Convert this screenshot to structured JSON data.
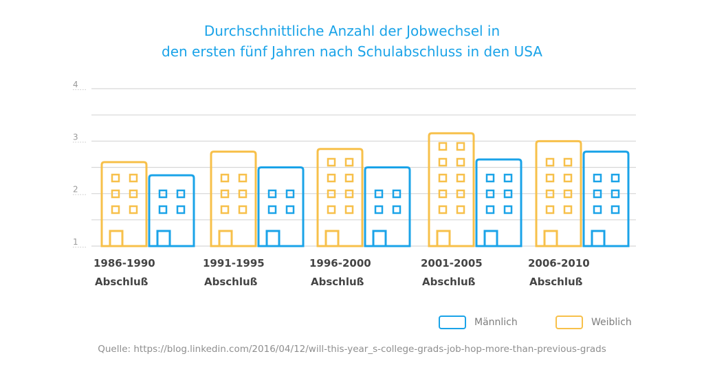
{
  "chart_data": {
    "type": "bar",
    "title": [
      "Durchschnittliche Anzahl der Jobwechsel in",
      "den ersten fünf Jahren nach Schulabschluss in den USA"
    ],
    "categories": [
      {
        "line1": "1986-1990",
        "line2": "Abschluß"
      },
      {
        "line1": "1991-1995",
        "line2": "Abschluß"
      },
      {
        "line1": "1996-2000",
        "line2": "Abschluß"
      },
      {
        "line1": "2001-2005",
        "line2": "Abschluß"
      },
      {
        "line1": "2006-2010",
        "line2": "Abschluß"
      }
    ],
    "series": [
      {
        "name": "Weiblich",
        "color": "#f7c04a",
        "values": [
          2.6,
          2.8,
          2.85,
          3.15,
          3.0
        ]
      },
      {
        "name": "Männlich",
        "color": "#1aa3e8",
        "values": [
          2.35,
          2.5,
          2.5,
          2.65,
          2.8
        ]
      }
    ],
    "yticks": [
      1,
      2,
      3,
      4
    ],
    "ylim": [
      1,
      4
    ],
    "grid": true,
    "legend": "bottom-right"
  },
  "source": "Quelle: https://blog.linkedin.com/2016/04/12/will-this-year_s-college-grads-job-hop-more-than-previous-grads"
}
